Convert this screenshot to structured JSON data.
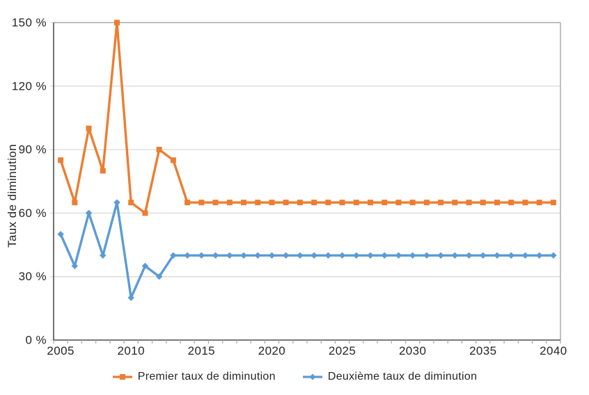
{
  "chart_data": {
    "type": "line",
    "title": "",
    "ylabel": "Taux de diminution",
    "xlabel": "",
    "x": [
      2005,
      2006,
      2007,
      2008,
      2009,
      2010,
      2011,
      2012,
      2013,
      2014,
      2015,
      2016,
      2017,
      2018,
      2019,
      2020,
      2021,
      2022,
      2023,
      2024,
      2025,
      2026,
      2027,
      2028,
      2029,
      2030,
      2031,
      2032,
      2033,
      2034,
      2035,
      2036,
      2037,
      2038,
      2039,
      2040
    ],
    "series": [
      {
        "name": "Premier taux de diminution",
        "color": "#ED7D31",
        "marker": "square",
        "values": [
          85,
          65,
          100,
          80,
          150,
          65,
          60,
          90,
          85,
          65,
          65,
          65,
          65,
          65,
          65,
          65,
          65,
          65,
          65,
          65,
          65,
          65,
          65,
          65,
          65,
          65,
          65,
          65,
          65,
          65,
          65,
          65,
          65,
          65,
          65,
          65
        ]
      },
      {
        "name": "Deuxième taux de diminution",
        "color": "#5B9BD5",
        "marker": "diamond",
        "values": [
          50,
          35,
          60,
          40,
          65,
          20,
          35,
          30,
          40,
          40,
          40,
          40,
          40,
          40,
          40,
          40,
          40,
          40,
          40,
          40,
          40,
          40,
          40,
          40,
          40,
          40,
          40,
          40,
          40,
          40,
          40,
          40,
          40,
          40,
          40,
          40
        ]
      }
    ],
    "ylim": [
      0,
      150
    ],
    "yticks": [
      0,
      30,
      60,
      90,
      120,
      150
    ],
    "ytick_labels": [
      "0 %",
      "30 %",
      "60 %",
      "90 %",
      "120 %",
      "150 %"
    ],
    "xticks": [
      2005,
      2010,
      2015,
      2020,
      2025,
      2030,
      2035,
      2040
    ],
    "xtick_labels": [
      "2005",
      "2010",
      "2015",
      "2020",
      "2025",
      "2030",
      "2035",
      "2040"
    ],
    "grid": "horizontal",
    "legend_position": "bottom",
    "colors": {
      "gridline": "#D9D9D9",
      "axis": "#4D4D4D",
      "plot_border": "#A6A6A6",
      "tick": "#A6A6A6",
      "text": "#262626"
    }
  }
}
